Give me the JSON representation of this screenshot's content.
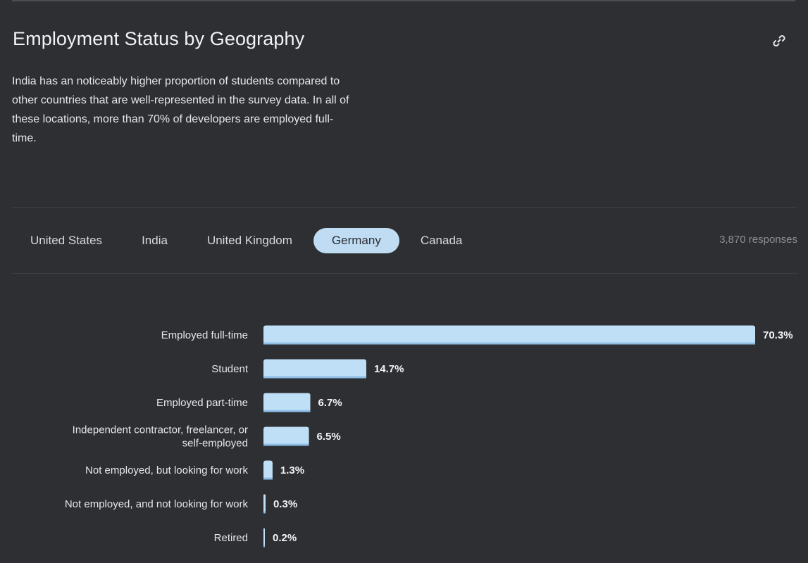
{
  "section": {
    "title": "Employment Status by Geography",
    "description": "India has an noticeably higher proportion of students compared to other countries that are well-represented in the survey data. In all of these locations, more than 70% of developers are employed full-time."
  },
  "tabs": [
    {
      "label": "United States",
      "active": false
    },
    {
      "label": "India",
      "active": false
    },
    {
      "label": "United Kingdom",
      "active": false
    },
    {
      "label": "Germany",
      "active": true
    },
    {
      "label": "Canada",
      "active": false
    }
  ],
  "responses": "3,870 responses",
  "icons": {
    "permalink": "link-icon"
  },
  "colors": {
    "bar": "#bfdff7",
    "bar_shadow": "#8fbfe6",
    "active_tab": "#bfdcf3",
    "background": "#2d2f33"
  },
  "chart_data": {
    "type": "bar",
    "orientation": "horizontal",
    "categories": [
      [
        "Employed full-time"
      ],
      [
        "Student"
      ],
      [
        "Employed part-time"
      ],
      [
        "Independent contractor, freelancer, or",
        "self-employed"
      ],
      [
        "Not employed, but looking for work"
      ],
      [
        "Not employed, and not looking for work"
      ],
      [
        "Retired"
      ]
    ],
    "values": [
      70.3,
      14.7,
      6.7,
      6.5,
      1.3,
      0.3,
      0.2
    ],
    "value_labels": [
      "70.3%",
      "14.7%",
      "6.7%",
      "6.5%",
      "1.3%",
      "0.3%",
      "0.2%"
    ],
    "xlim": [
      0,
      70.3
    ],
    "grid": false
  }
}
